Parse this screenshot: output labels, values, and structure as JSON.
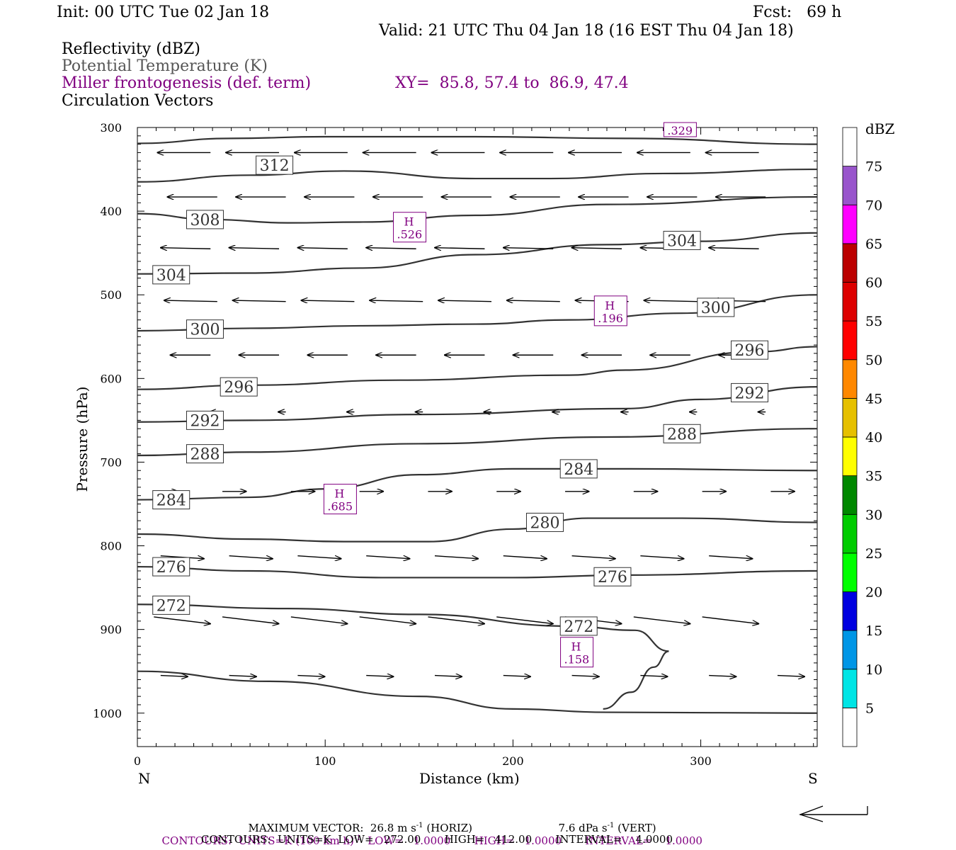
{
  "header": {
    "init": "Init: 00 UTC Tue 02 Jan 18",
    "fcst": "Fcst:   69 h",
    "valid": "Valid: 21 UTC Thu 04 Jan 18 (16 EST Thu 04 Jan 18)"
  },
  "fields": {
    "reflectivity": "Reflectivity (dBZ)",
    "theta": "Potential Temperature (K)",
    "miller": "Miller frontogenesis (def. term)",
    "xy": "XY=  85.8, 57.4 to  86.9, 47.4",
    "vectors": "Circulation Vectors"
  },
  "footer": {
    "max_vector": "MAXIMUM VECTOR:  26.8 m s",
    "max_vector_horiz": "(HORIZ)",
    "max_vector_vert": "7.6 dPa s",
    "max_vector_vert_tail": "(VERT)",
    "exp": "-1",
    "contours1_a": "CONTOURS:  UNITS=K (100 km h)",
    "contours1_b": "LOW=   1.0000       HIGH=   1.0000       INTERVAL=    1.0000",
    "contours2": "CONTOURS:  UNITS=K  LOW=   272.00       HIGH=   412.00       INTERVAL=    4.0000"
  },
  "colorbar": {
    "title": "dBZ",
    "levels": [
      "5",
      "10",
      "15",
      "20",
      "25",
      "30",
      "35",
      "40",
      "45",
      "50",
      "55",
      "60",
      "65",
      "70",
      "75"
    ],
    "colors": [
      "#ffffff",
      "#00e5e5",
      "#0096e6",
      "#0000e0",
      "#00ff00",
      "#00cc00",
      "#008800",
      "#ffff00",
      "#e6c000",
      "#ff8800",
      "#ff0000",
      "#dd0000",
      "#bb0000",
      "#ff00ff",
      "#9955cc",
      "#ffffff"
    ]
  },
  "chart_data": {
    "type": "line",
    "xlabel": "Distance (km)",
    "ylabel": "Pressure (hPa)",
    "xlim": [
      0,
      362
    ],
    "ylim": [
      1040,
      300
    ],
    "xticks": [
      "0",
      "100",
      "200",
      "300"
    ],
    "yticks": [
      "300",
      "400",
      "500",
      "600",
      "700",
      "800",
      "900",
      "1000"
    ],
    "x_left_label": "N",
    "x_right_label": "S",
    "isentropes": [
      {
        "label": "312",
        "pts": [
          [
            0,
            319
          ],
          [
            50,
            313
          ],
          [
            100,
            311
          ],
          [
            180,
            311
          ],
          [
            260,
            313
          ],
          [
            362,
            320
          ]
        ]
      },
      {
        "label": "312",
        "pts": [
          [
            0,
            365
          ],
          [
            60,
            357
          ],
          [
            110,
            352
          ],
          [
            180,
            361
          ],
          [
            220,
            361
          ],
          [
            280,
            355
          ],
          [
            362,
            350
          ]
        ]
      },
      {
        "label": "308",
        "pts": [
          [
            0,
            403
          ],
          [
            40,
            410
          ],
          [
            80,
            414
          ],
          [
            120,
            413
          ],
          [
            180,
            405
          ],
          [
            250,
            392
          ],
          [
            362,
            383
          ]
        ]
      },
      {
        "label": "304",
        "pts": [
          [
            0,
            475
          ],
          [
            60,
            474
          ],
          [
            120,
            468
          ],
          [
            180,
            452
          ],
          [
            250,
            440
          ],
          [
            300,
            436
          ],
          [
            362,
            426
          ]
        ]
      },
      {
        "label": "300",
        "pts": [
          [
            0,
            543
          ],
          [
            60,
            540
          ],
          [
            120,
            537
          ],
          [
            180,
            535
          ],
          [
            230,
            530
          ],
          [
            290,
            522
          ],
          [
            362,
            500
          ]
        ]
      },
      {
        "label": "296",
        "pts": [
          [
            0,
            613
          ],
          [
            60,
            608
          ],
          [
            140,
            602
          ],
          [
            230,
            596
          ],
          [
            260,
            590
          ],
          [
            330,
            568
          ],
          [
            362,
            562
          ]
        ]
      },
      {
        "label": "292",
        "pts": [
          [
            0,
            652
          ],
          [
            60,
            650
          ],
          [
            150,
            643
          ],
          [
            260,
            636
          ],
          [
            300,
            625
          ],
          [
            362,
            610
          ]
        ]
      },
      {
        "label": "288",
        "pts": [
          [
            0,
            692
          ],
          [
            60,
            688
          ],
          [
            150,
            678
          ],
          [
            250,
            670
          ],
          [
            362,
            660
          ]
        ]
      },
      {
        "label": "284",
        "pts": [
          [
            0,
            745
          ],
          [
            60,
            742
          ],
          [
            100,
            732
          ],
          [
            150,
            715
          ],
          [
            200,
            708
          ],
          [
            262,
            708
          ],
          [
            362,
            710
          ]
        ]
      },
      {
        "label": "280",
        "pts": [
          [
            0,
            786
          ],
          [
            60,
            792
          ],
          [
            110,
            795
          ],
          [
            155,
            795
          ],
          [
            200,
            780
          ],
          [
            240,
            767
          ],
          [
            290,
            767
          ],
          [
            362,
            772
          ]
        ]
      },
      {
        "label": "276",
        "pts": [
          [
            0,
            825
          ],
          [
            60,
            830
          ],
          [
            130,
            838
          ],
          [
            200,
            838
          ],
          [
            260,
            835
          ],
          [
            362,
            830
          ]
        ]
      },
      {
        "label": "272",
        "pts": [
          [
            0,
            870
          ],
          [
            80,
            875
          ],
          [
            150,
            882
          ],
          [
            230,
            896
          ],
          [
            265,
            901
          ],
          [
            283,
            926
          ],
          [
            275,
            945
          ],
          [
            263,
            975
          ],
          [
            248,
            995
          ]
        ]
      },
      {
        "label": "",
        "pts": [
          [
            0,
            950
          ],
          [
            70,
            962
          ],
          [
            150,
            980
          ],
          [
            200,
            995
          ],
          [
            250,
            999
          ],
          [
            362,
            1000
          ]
        ]
      }
    ],
    "isentrope_labels": [
      {
        "v": "312",
        "x": 73,
        "p": 345
      },
      {
        "v": "308",
        "x": 36,
        "p": 410
      },
      {
        "v": "304",
        "x": 18,
        "p": 476
      },
      {
        "v": "304",
        "x": 290,
        "p": 435
      },
      {
        "v": "300",
        "x": 36,
        "p": 541
      },
      {
        "v": "300",
        "x": 308,
        "p": 515
      },
      {
        "v": "296",
        "x": 54,
        "p": 610
      },
      {
        "v": "296",
        "x": 326,
        "p": 566
      },
      {
        "v": "292",
        "x": 36,
        "p": 650
      },
      {
        "v": "292",
        "x": 326,
        "p": 617
      },
      {
        "v": "288",
        "x": 36,
        "p": 690
      },
      {
        "v": "288",
        "x": 290,
        "p": 666
      },
      {
        "v": "284",
        "x": 18,
        "p": 745
      },
      {
        "v": "284",
        "x": 235,
        "p": 708
      },
      {
        "v": "280",
        "x": 217,
        "p": 772
      },
      {
        "v": "276",
        "x": 18,
        "p": 825
      },
      {
        "v": "276",
        "x": 253,
        "p": 837
      },
      {
        "v": "272",
        "x": 18,
        "p": 871
      },
      {
        "v": "272",
        "x": 235,
        "p": 896
      }
    ],
    "frontogenesis_maxima": [
      {
        "x": 145,
        "p": 420,
        "label": "H",
        "value": ".526"
      },
      {
        "x": 252,
        "p": 520,
        "label": "H",
        "value": ".196"
      },
      {
        "x": 108,
        "p": 745,
        "label": "H",
        "value": ".685"
      },
      {
        "x": 234,
        "p": 928,
        "label": "H",
        "value": ".158"
      },
      {
        "x": 289,
        "p": 300,
        "label": "",
        "value": ".329"
      }
    ],
    "vector_rows": [
      {
        "p": 330,
        "u": -0.75,
        "w": 0
      },
      {
        "p": 383,
        "u": -0.7,
        "w": 0
      },
      {
        "p": 445,
        "u": -0.7,
        "w": -0.02
      },
      {
        "p": 508,
        "u": -0.75,
        "w": -0.02
      },
      {
        "p": 572,
        "u": -0.55,
        "w": 0
      },
      {
        "p": 640,
        "u": -0.05,
        "w": 0
      },
      {
        "p": 735,
        "u": 0.3,
        "w": 0
      },
      {
        "p": 812,
        "u": 0.6,
        "w": 0.05
      },
      {
        "p": 885,
        "u": 0.8,
        "w": 0.12
      },
      {
        "p": 955,
        "u": 0.35,
        "w": 0.02
      }
    ]
  }
}
